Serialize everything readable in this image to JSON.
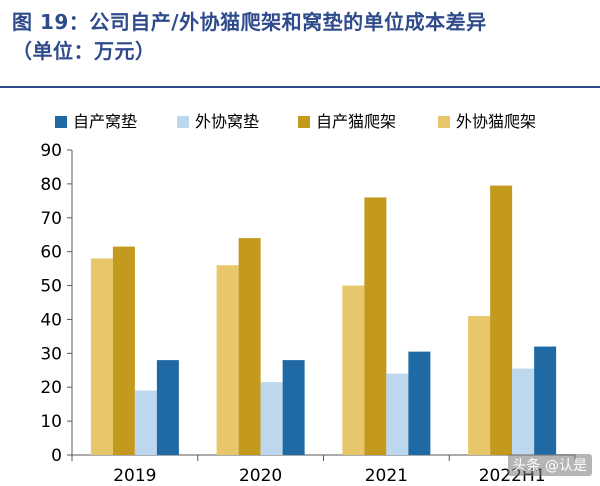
{
  "header": {
    "title_line1": "图 19：公司自产/外协猫爬架和窝垫的单位成本差异",
    "title_line2": "（单位：万元）"
  },
  "watermark": "头条 @认是",
  "chart_data": {
    "type": "bar",
    "categories": [
      "2019",
      "2020",
      "2021",
      "2022H1"
    ],
    "series": [
      {
        "name": "外协猫爬架",
        "color": "#e8c66a",
        "values": [
          58,
          56,
          50,
          41
        ]
      },
      {
        "name": "自产猫爬架",
        "color": "#c49a1e",
        "values": [
          61.5,
          64,
          76,
          79.5
        ]
      },
      {
        "name": "外协窝垫",
        "color": "#bdd7ee",
        "values": [
          19,
          21.5,
          24,
          25.5
        ]
      },
      {
        "name": "自产窝垫",
        "color": "#1f6aa5",
        "values": [
          28,
          28,
          30.5,
          32
        ]
      }
    ],
    "legend_order": [
      "自产窝垫",
      "外协窝垫",
      "自产猫爬架",
      "外协猫爬架"
    ],
    "legend_position": "top",
    "ylim": [
      0,
      90
    ],
    "yticks": [
      0,
      10,
      20,
      30,
      40,
      50,
      60,
      70,
      80,
      90
    ],
    "grid": false
  }
}
